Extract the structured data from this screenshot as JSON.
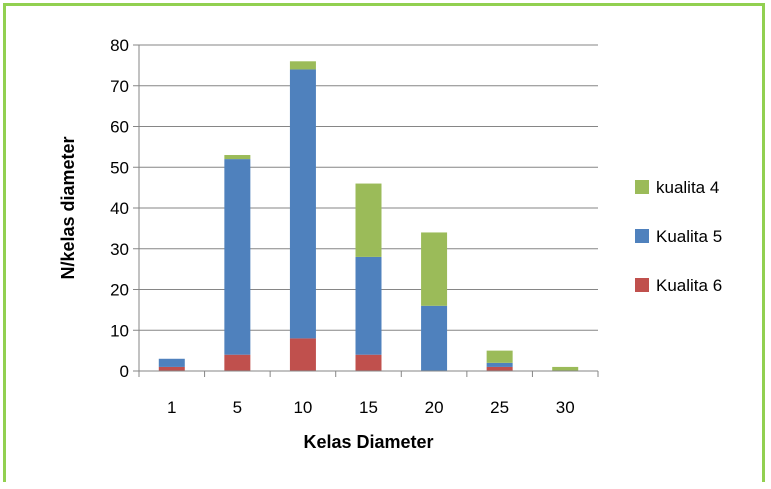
{
  "chart_data": {
    "type": "bar",
    "stacked": true,
    "categories": [
      "1",
      "5",
      "10",
      "15",
      "20",
      "25",
      "30"
    ],
    "series": [
      {
        "name": "Kualita 6",
        "values": [
          1,
          4,
          8,
          4,
          0,
          1,
          0
        ],
        "color": "#c0504d"
      },
      {
        "name": "Kualita 5",
        "values": [
          2,
          48,
          66,
          24,
          16,
          1,
          0
        ],
        "color": "#4f81bd"
      },
      {
        "name": "kualita 4",
        "values": [
          0,
          1,
          2,
          18,
          18,
          3,
          1
        ],
        "color": "#9bbb59"
      }
    ],
    "legend_order": [
      "kualita 4",
      "Kualita 5",
      "Kualita 6"
    ],
    "xlabel": "Kelas Diameter",
    "ylabel": "N/kelas diameter",
    "ylim": [
      0,
      80
    ],
    "yticks": [
      0,
      10,
      20,
      30,
      40,
      50,
      60,
      70,
      80
    ],
    "grid": true,
    "legend_position": "right",
    "frame_color": "#92d050"
  }
}
